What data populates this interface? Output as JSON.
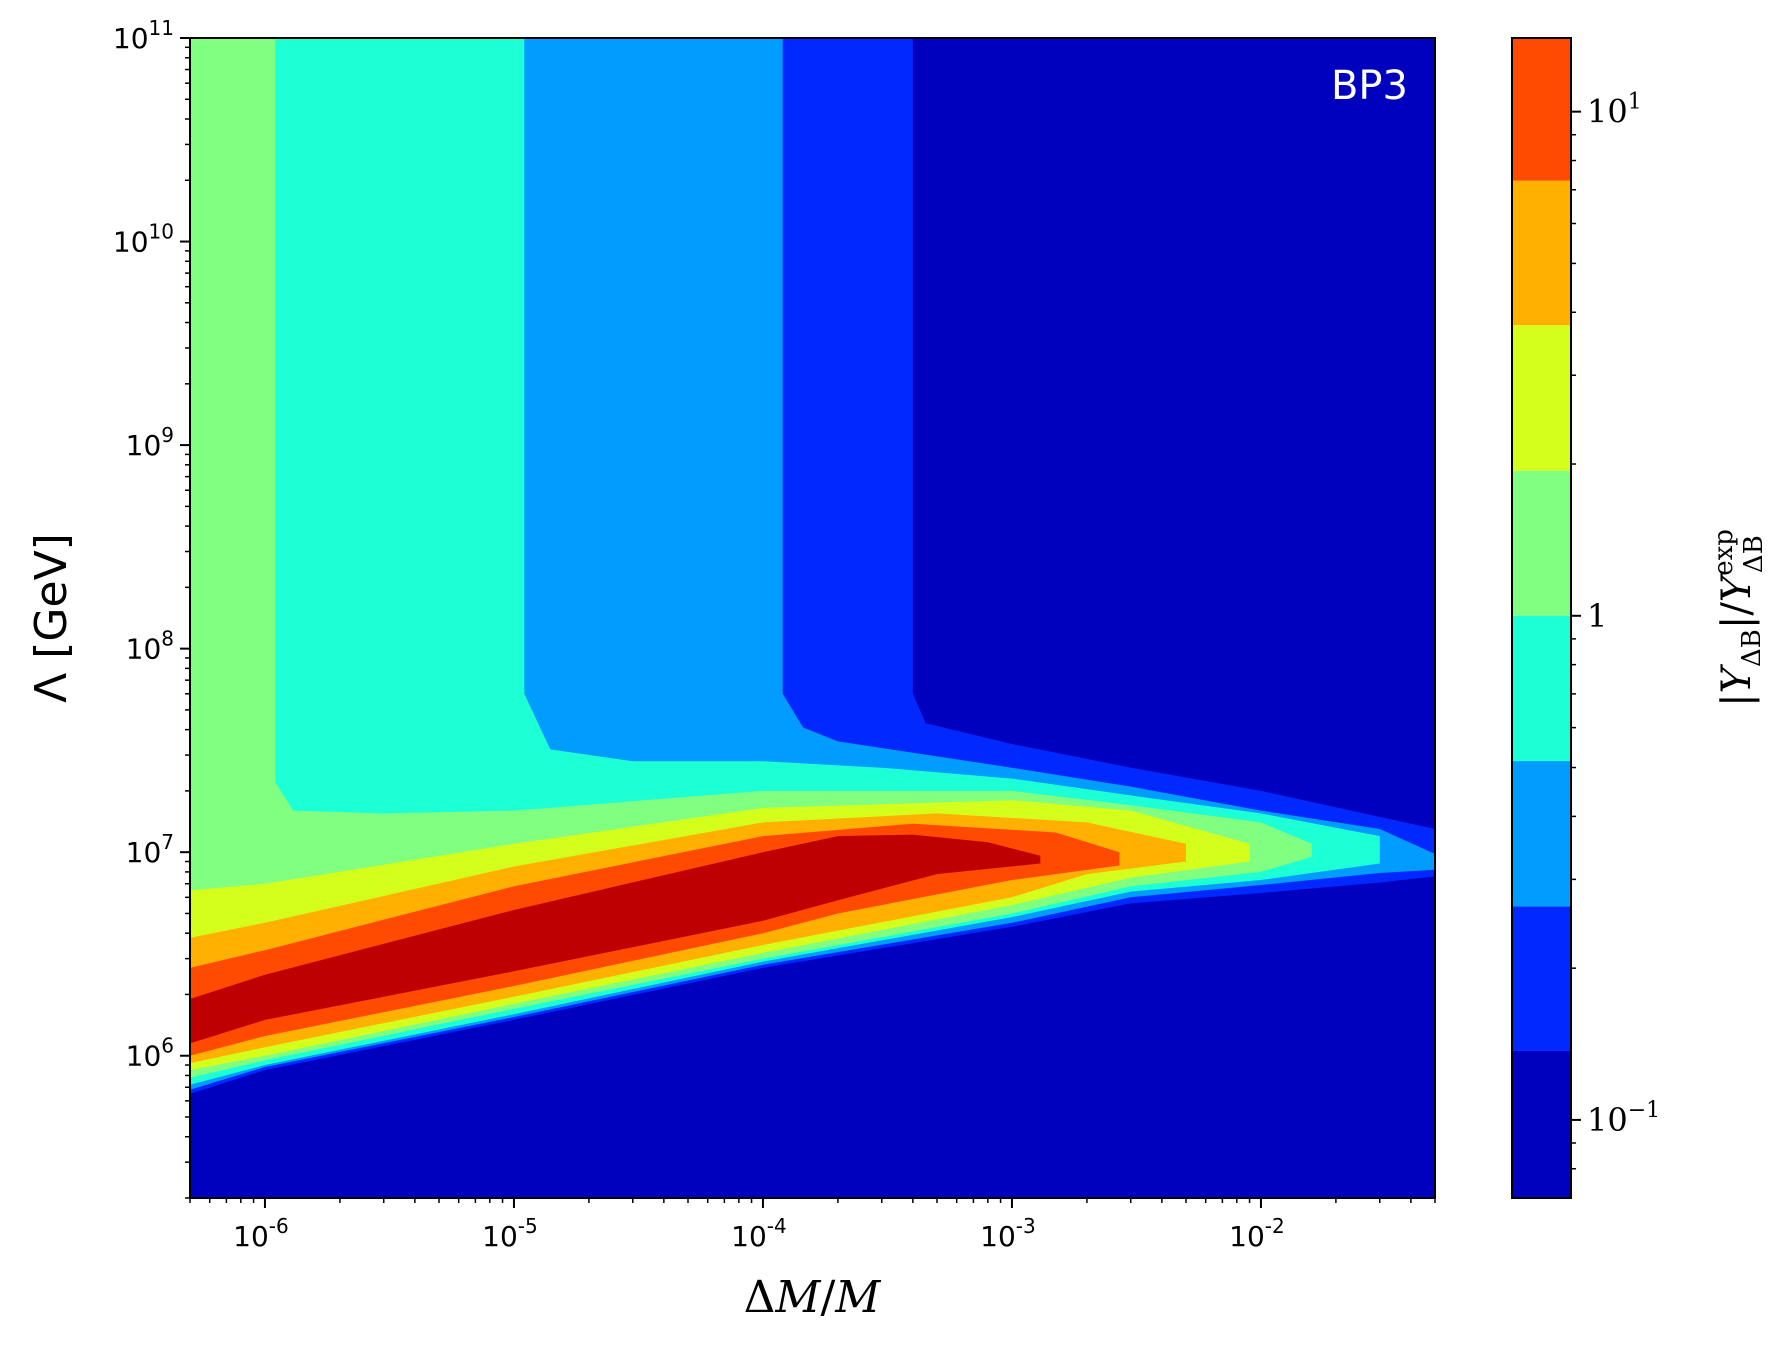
{
  "chart_data": {
    "type": "heatmap",
    "xlabel": "ΔM/M",
    "ylabel": "Λ [GeV]",
    "xscale": "log",
    "yscale": "log",
    "xlim": [
      5e-07,
      0.05
    ],
    "ylim": [
      200000,
      100000000000.0
    ],
    "grid": false,
    "annotation": "BP3",
    "x_ticks": [
      {
        "value": 1e-06,
        "base": "10",
        "exp": "-6"
      },
      {
        "value": 1e-05,
        "base": "10",
        "exp": "-5"
      },
      {
        "value": 0.0001,
        "base": "10",
        "exp": "-4"
      },
      {
        "value": 0.001,
        "base": "10",
        "exp": "-3"
      },
      {
        "value": 0.01,
        "base": "10",
        "exp": "-2"
      }
    ],
    "y_ticks": [
      {
        "value": 1000000.0,
        "base": "10",
        "exp": "6"
      },
      {
        "value": 10000000.0,
        "base": "10",
        "exp": "7"
      },
      {
        "value": 100000000.0,
        "base": "10",
        "exp": "8"
      },
      {
        "value": 1000000000.0,
        "base": "10",
        "exp": "9"
      },
      {
        "value": 10000000000.0,
        "base": "10",
        "exp": "10"
      },
      {
        "value": 100000000000.0,
        "base": "10",
        "exp": "11"
      }
    ],
    "colorbar": {
      "label": "|Y_ΔB|/Y_ΔB^exp",
      "scale": "log",
      "range": [
        0.07,
        14
      ],
      "levels": [
        0.07,
        0.137,
        0.265,
        0.515,
        1.0,
        1.94,
        3.77,
        7.3,
        14
      ],
      "colors": [
        "#0000bf",
        "#0028ff",
        "#009cff",
        "#1dffd4",
        "#80ff80",
        "#d4ff1d",
        "#ffb000",
        "#ff4a00",
        "#bf0000"
      ],
      "ticks": [
        {
          "value": 0.1,
          "base": "10",
          "exp": "−1"
        },
        {
          "value": 1,
          "base": "1",
          "exp": ""
        },
        {
          "value": 10,
          "base": "10",
          "exp": "1"
        }
      ]
    },
    "regions": [
      {
        "level": 0,
        "color": "#0000bf",
        "points": [
          [
            5e-07,
            200000.0
          ],
          [
            0.05,
            200000.0
          ],
          [
            0.05,
            100000000000.0
          ],
          [
            5e-07,
            100000000000.0
          ]
        ]
      },
      {
        "level": 1,
        "color": "#0028ff",
        "points": [
          [
            0.00012,
            100000000000.0
          ],
          [
            0.0004,
            100000000000.0
          ],
          [
            0.0004,
            60000000.0
          ],
          [
            0.00045,
            43000000.0
          ],
          [
            0.001,
            34000000.0
          ],
          [
            0.003,
            26000000.0
          ],
          [
            0.01,
            20000000.0
          ],
          [
            0.05,
            13000000.0
          ],
          [
            0.05,
            7600000.0
          ],
          [
            0.03,
            7100000.0
          ],
          [
            0.01,
            6300000.0
          ],
          [
            0.003,
            5600000.0
          ],
          [
            0.001,
            4300000.0
          ],
          [
            0.0001,
            2700000.0
          ],
          [
            1e-05,
            1500000.0
          ],
          [
            1e-06,
            850000.0
          ],
          [
            5e-07,
            650000.0
          ],
          [
            5e-07,
            100000000000.0
          ]
        ]
      },
      {
        "level": 2,
        "color": "#009cff",
        "points": [
          [
            1.1e-05,
            100000000000.0
          ],
          [
            0.00012,
            100000000000.0
          ],
          [
            0.00012,
            60000000.0
          ],
          [
            0.000145,
            41000000.0
          ],
          [
            0.0002,
            35000000.0
          ],
          [
            0.001,
            26000000.0
          ],
          [
            0.003,
            21000000.0
          ],
          [
            0.01,
            16000000.0
          ],
          [
            0.03,
            13000000.0
          ],
          [
            0.05,
            9800000.0
          ],
          [
            0.05,
            8200000.0
          ],
          [
            0.03,
            7900000.0
          ],
          [
            0.01,
            6900000.0
          ],
          [
            0.003,
            6000000.0
          ],
          [
            0.001,
            4500000.0
          ],
          [
            0.0001,
            2800000.0
          ],
          [
            1e-05,
            1550000.0
          ],
          [
            1e-06,
            880000.0
          ],
          [
            5e-07,
            680000.0
          ],
          [
            5e-07,
            100000000000.0
          ]
        ]
      },
      {
        "level": 3,
        "color": "#1dffd4",
        "points": [
          [
            1.1e-06,
            100000000000.0
          ],
          [
            1.1e-05,
            100000000000.0
          ],
          [
            1.1e-05,
            60000000.0
          ],
          [
            1.4e-05,
            32000000.0
          ],
          [
            3e-05,
            28000000.0
          ],
          [
            0.0001,
            28000000.0
          ],
          [
            0.0003,
            26000000.0
          ],
          [
            0.001,
            23000000.0
          ],
          [
            0.003,
            19000000.0
          ],
          [
            0.01,
            15500000.0
          ],
          [
            0.03,
            12000000.0
          ],
          [
            0.03,
            8800000.0
          ],
          [
            0.01,
            7300000.0
          ],
          [
            0.003,
            6400000.0
          ],
          [
            0.001,
            4800000.0
          ],
          [
            0.0001,
            2900000.0
          ],
          [
            1e-05,
            1600000.0
          ],
          [
            1e-06,
            900000.0
          ],
          [
            5e-07,
            720000.0
          ],
          [
            5e-07,
            100000000000.0
          ]
        ]
      },
      {
        "level": 4,
        "color": "#80ff80",
        "points": [
          [
            5e-07,
            100000000000.0
          ],
          [
            1.1e-06,
            100000000000.0
          ],
          [
            1.1e-06,
            22000000.0
          ],
          [
            1.3e-06,
            16000000.0
          ],
          [
            3e-06,
            15500000.0
          ],
          [
            1e-05,
            16000000.0
          ],
          [
            0.0001,
            20000000.0
          ],
          [
            0.001,
            20000000.0
          ],
          [
            0.003,
            17000000.0
          ],
          [
            0.01,
            14000000.0
          ],
          [
            0.016,
            11000000.0
          ],
          [
            0.016,
            9500000.0
          ],
          [
            0.01,
            8000000.0
          ],
          [
            0.003,
            6800000.0
          ],
          [
            0.001,
            5000000.0
          ],
          [
            0.0001,
            3000000.0
          ],
          [
            1e-05,
            1700000.0
          ],
          [
            1e-06,
            950000.0
          ],
          [
            5e-07,
            780000.0
          ]
        ]
      },
      {
        "level": 5,
        "color": "#d4ff1d",
        "points": [
          [
            5e-07,
            6500000.0
          ],
          [
            1e-06,
            7000000.0
          ],
          [
            1e-05,
            11000000.0
          ],
          [
            0.0001,
            16500000.0
          ],
          [
            0.001,
            18000000.0
          ],
          [
            0.003,
            16000000.0
          ],
          [
            0.009,
            11000000.0
          ],
          [
            0.009,
            9000000.0
          ],
          [
            0.003,
            7500000.0
          ],
          [
            0.001,
            5500000.0
          ],
          [
            0.0001,
            3200000.0
          ],
          [
            1e-05,
            1800000.0
          ],
          [
            1e-06,
            1000000.0
          ],
          [
            5e-07,
            850000.0
          ]
        ]
      },
      {
        "level": 6,
        "color": "#ffb000",
        "points": [
          [
            5e-07,
            3800000.0
          ],
          [
            1e-06,
            4500000.0
          ],
          [
            1e-05,
            8500000.0
          ],
          [
            0.0001,
            14000000.0
          ],
          [
            0.0005,
            15500000.0
          ],
          [
            0.002,
            14000000.0
          ],
          [
            0.005,
            11000000.0
          ],
          [
            0.005,
            9000000.0
          ],
          [
            0.002,
            7800000.0
          ],
          [
            0.001,
            6000000.0
          ],
          [
            0.0001,
            3500000.0
          ],
          [
            1e-05,
            1950000.0
          ],
          [
            1e-06,
            1100000.0
          ],
          [
            5e-07,
            920000.0
          ]
        ]
      },
      {
        "level": 7,
        "color": "#ff4a00",
        "points": [
          [
            5e-07,
            2700000.0
          ],
          [
            1e-06,
            3300000.0
          ],
          [
            1e-05,
            6800000.0
          ],
          [
            0.0001,
            12000000.0
          ],
          [
            0.0004,
            13800000.0
          ],
          [
            0.0015,
            12500000.0
          ],
          [
            0.0027,
            10000000.0
          ],
          [
            0.0027,
            8600000.0
          ],
          [
            0.001,
            7300000.0
          ],
          [
            0.0002,
            5000000.0
          ],
          [
            0.0001,
            4000000.0
          ],
          [
            1e-05,
            2200000.0
          ],
          [
            1e-06,
            1250000.0
          ],
          [
            5e-07,
            1000000.0
          ]
        ]
      },
      {
        "level": 8,
        "color": "#bf0000",
        "points": [
          [
            5e-07,
            1900000.0
          ],
          [
            1e-06,
            2500000.0
          ],
          [
            1e-05,
            5200000.0
          ],
          [
            0.0001,
            10000000.0
          ],
          [
            0.0002,
            12000000.0
          ],
          [
            0.0004,
            12200000.0
          ],
          [
            0.0008,
            11200000.0
          ],
          [
            0.0013,
            9600000.0
          ],
          [
            0.0013,
            8800000.0
          ],
          [
            0.0005,
            7800000.0
          ],
          [
            0.0002,
            5800000.0
          ],
          [
            0.0001,
            4600000.0
          ],
          [
            1e-05,
            2600000.0
          ],
          [
            1e-06,
            1500000.0
          ],
          [
            5e-07,
            1150000.0
          ]
        ]
      }
    ]
  }
}
